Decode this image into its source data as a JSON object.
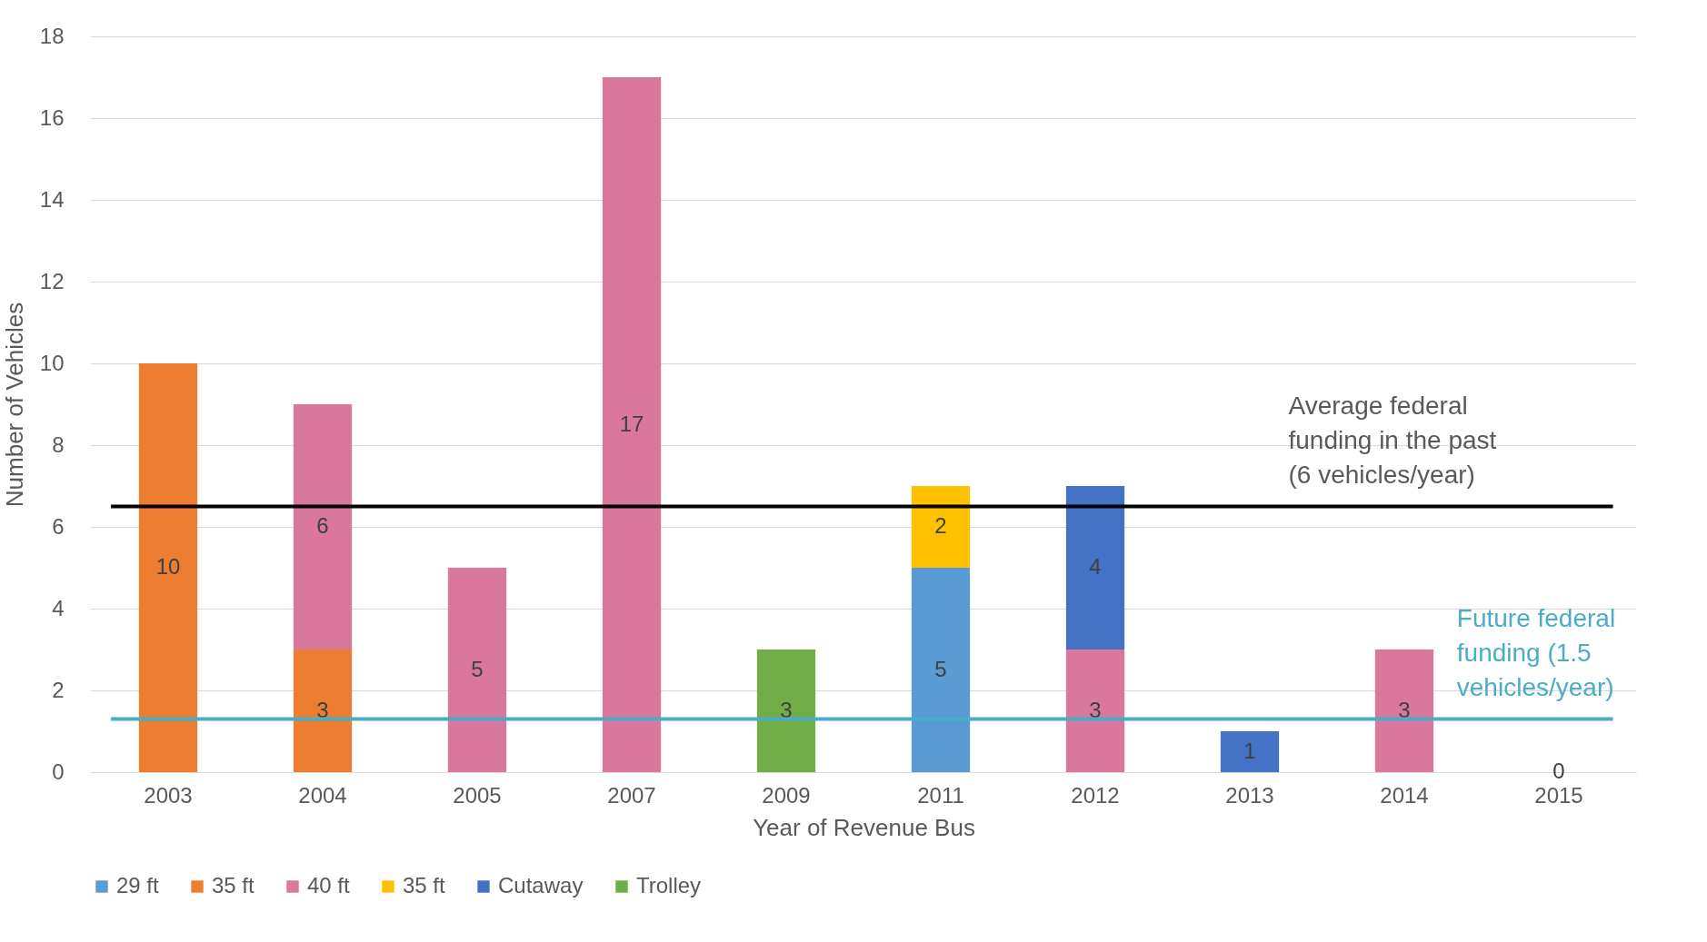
{
  "chart_data": {
    "type": "bar",
    "xlabel": "Year of Revenue Bus",
    "ylabel": "Number of Vehicles",
    "categories": [
      "2003",
      "2004",
      "2005",
      "2007",
      "2009",
      "2011",
      "2012",
      "2013",
      "2014",
      "2015"
    ],
    "series": [
      {
        "name": "29 ft",
        "color": "#5b9bd5",
        "values": [
          null,
          null,
          null,
          null,
          null,
          5,
          null,
          null,
          null,
          null
        ]
      },
      {
        "name": "35 ft",
        "color": "#ed7d31",
        "values": [
          10,
          3,
          null,
          null,
          null,
          null,
          null,
          null,
          null,
          null
        ]
      },
      {
        "name": "40 ft",
        "color": "#d9779d",
        "values": [
          null,
          6,
          5,
          17,
          null,
          null,
          3,
          null,
          3,
          0
        ]
      },
      {
        "name": "35 ft",
        "color": "#ffc000",
        "values": [
          null,
          null,
          null,
          null,
          null,
          2,
          null,
          null,
          null,
          null
        ]
      },
      {
        "name": "Cutaway",
        "color": "#4472c4",
        "values": [
          null,
          null,
          null,
          null,
          null,
          null,
          4,
          1,
          null,
          null
        ]
      },
      {
        "name": "Trolley",
        "color": "#70ad47",
        "values": [
          null,
          null,
          null,
          null,
          3,
          null,
          null,
          null,
          null,
          null
        ]
      }
    ],
    "stacked": true,
    "data_labels": true,
    "ylim": [
      0,
      18
    ],
    "yticks": [
      0,
      2,
      4,
      6,
      8,
      10,
      12,
      14,
      16,
      18
    ],
    "grid": "y",
    "legend": "bottom",
    "ref_lines": [
      {
        "axis": "y",
        "value": 6.5,
        "label": "Average federal funding in the past (6 vehicles/year)",
        "color": "#000000"
      },
      {
        "axis": "y",
        "value": 1.3,
        "label": "Future federal funding (1.5 vehicles/year)",
        "color": "#4bacc6"
      }
    ]
  }
}
